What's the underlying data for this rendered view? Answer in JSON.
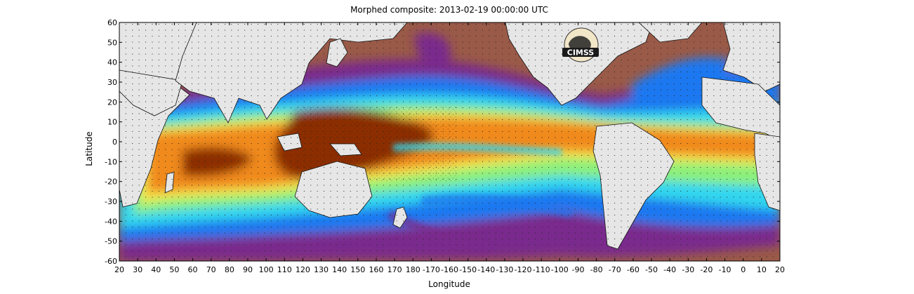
{
  "title": "Morphed composite: 2013-02-19 00:00:00 UTC",
  "ylabel": "Latitude",
  "xlabel": "Longitude",
  "logo_text": "CIMSS",
  "y_ticks": [
    "60",
    "50",
    "40",
    "30",
    "20",
    "10",
    "0",
    "-10",
    "-20",
    "-30",
    "-40",
    "-50",
    "-60"
  ],
  "x_ticks": [
    "20",
    "30",
    "40",
    "50",
    "60",
    "70",
    "80",
    "90",
    "100",
    "110",
    "120",
    "130",
    "140",
    "150",
    "160",
    "170",
    "180",
    "-170",
    "-160",
    "-150",
    "-140",
    "-130",
    "-120",
    "-110",
    "-100",
    "-90",
    "-80",
    "-70",
    "-60",
    "-50",
    "-40",
    "-30",
    "-20",
    "-10",
    "0",
    "10",
    "20"
  ],
  "colors": {
    "land": "#e6e6e6",
    "dry": "#9a5a48",
    "purple": "#7a2a8c",
    "blue": "#1e78f0",
    "cyan": "#33d6ee",
    "green": "#8cf07a",
    "yellow": "#f5e64a",
    "orange": "#f08a1e",
    "deep": "#8c2e00"
  }
}
